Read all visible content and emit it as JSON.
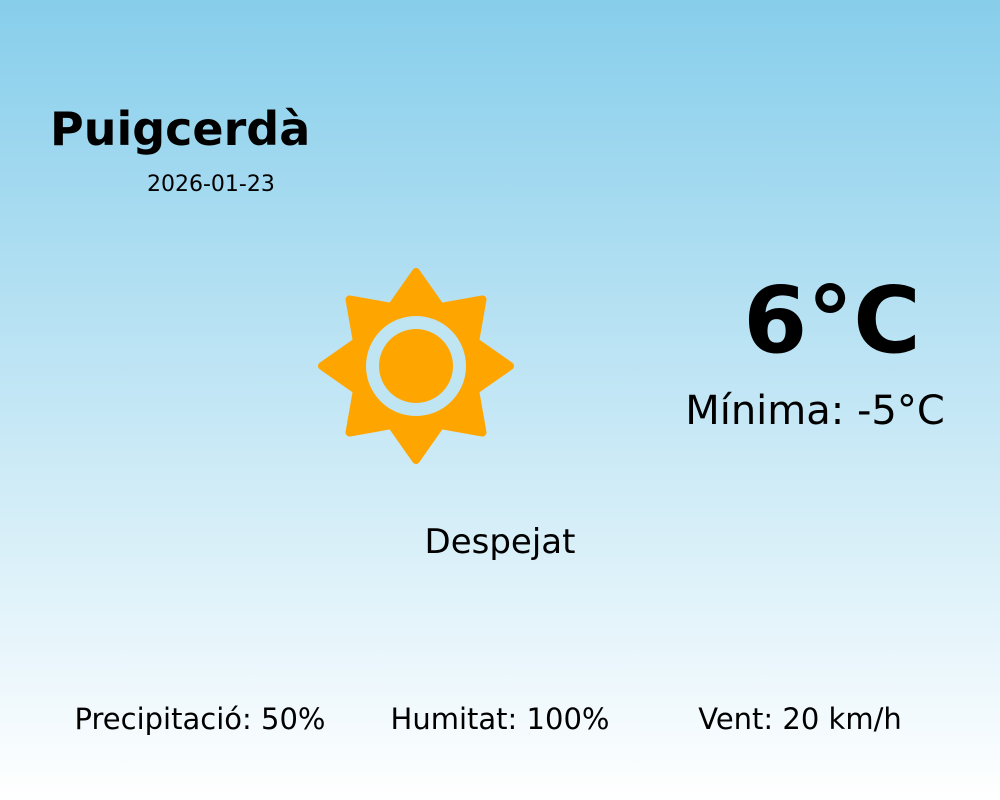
{
  "location": {
    "city": "Puigcerdà",
    "date": "2026-01-23"
  },
  "current": {
    "temperature": "6°C",
    "minimum": "Mínima: -5°C",
    "condition": "Despejat",
    "icon": "sun-icon",
    "icon_color": "#FFA500"
  },
  "stats": {
    "precipitation": "Precipitació: 50%",
    "humidity": "Humitat: 100%",
    "wind": "Vent: 20 km/h"
  }
}
